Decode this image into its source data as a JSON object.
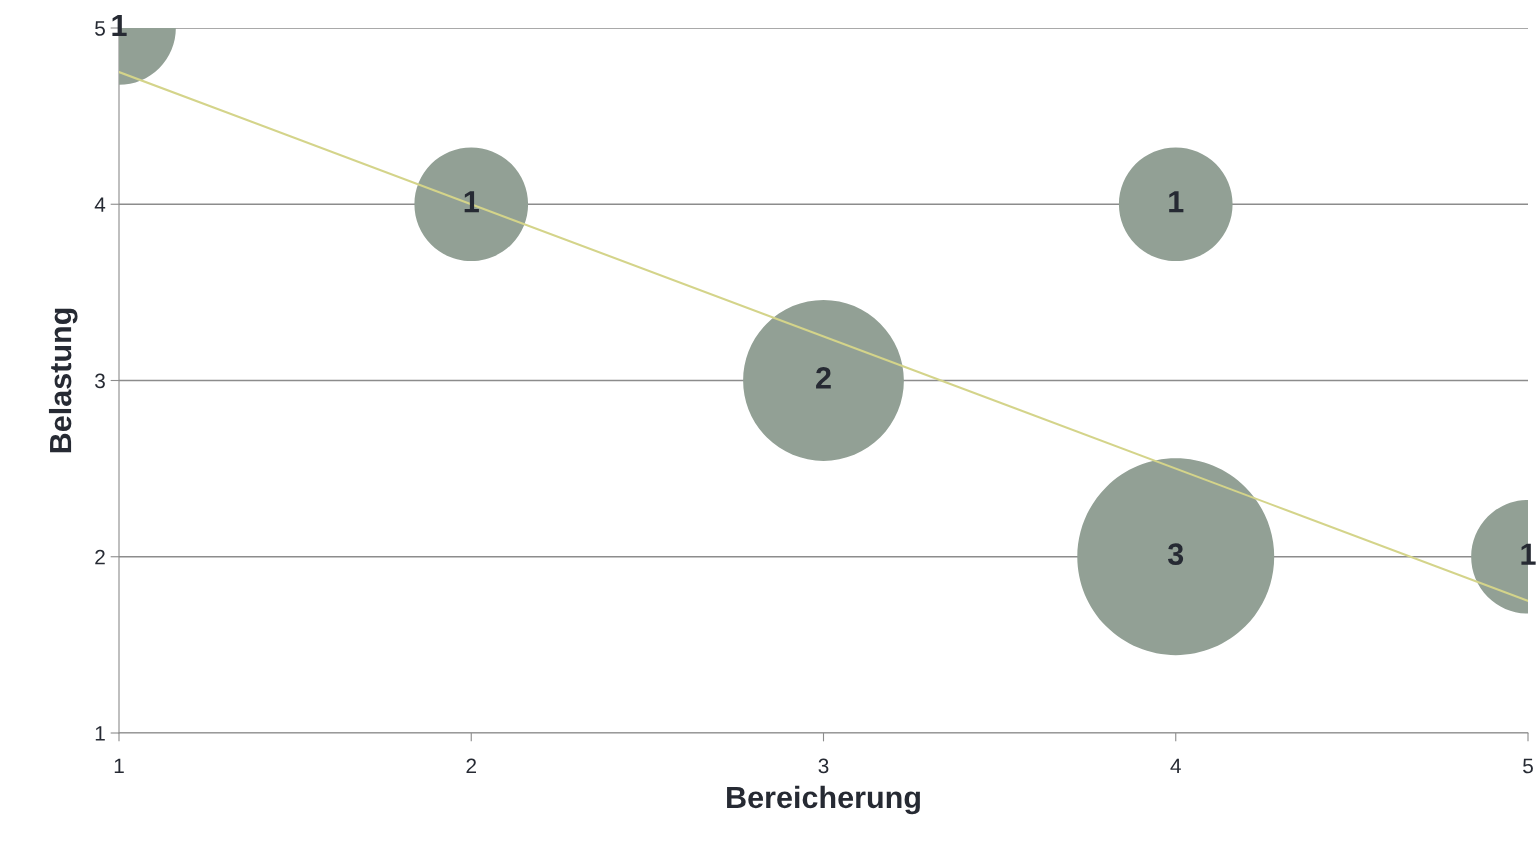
{
  "chart_data": {
    "type": "bubble",
    "xlabel": "Bereicherung",
    "ylabel": "Belastung",
    "xlim": [
      1,
      5
    ],
    "ylim": [
      1,
      5
    ],
    "xticks": [
      1,
      2,
      3,
      4,
      5
    ],
    "yticks": [
      1,
      2,
      3,
      4,
      5
    ],
    "grid": "y",
    "series": [
      {
        "color": "#92a095",
        "x": [
          1,
          2,
          4,
          3,
          4,
          5
        ],
        "values": [
          5,
          4,
          4,
          3,
          2,
          2
        ],
        "sizes": [
          1,
          1,
          1,
          2,
          3,
          1
        ],
        "value_labels": [
          "1",
          "1",
          "1",
          "2",
          "3",
          "1"
        ]
      },
      {
        "type": "line",
        "color": "#d4d48a",
        "x": [
          1,
          5
        ],
        "values": [
          4.75,
          1.75
        ]
      }
    ]
  }
}
